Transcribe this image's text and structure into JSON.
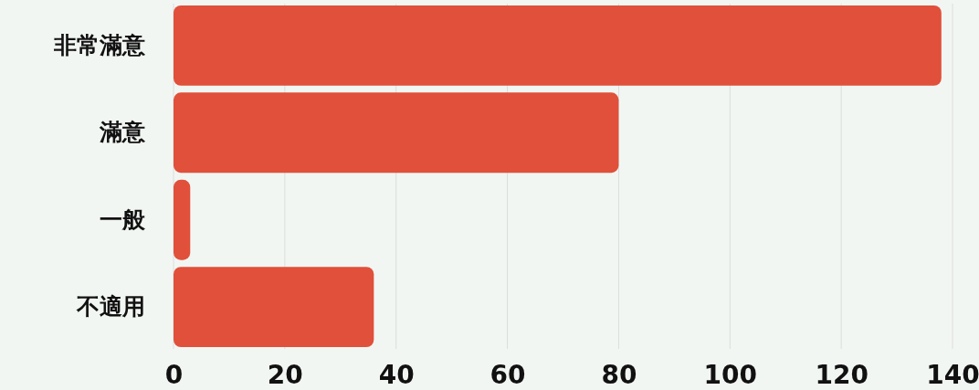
{
  "chart_data": {
    "type": "bar",
    "orientation": "horizontal",
    "categories": [
      "非常滿意",
      "滿意",
      "一般",
      "不適用"
    ],
    "values": [
      138,
      80,
      3,
      36
    ],
    "color": "#e0503a",
    "xlim": [
      0,
      140
    ],
    "xticks": [
      0,
      20,
      40,
      60,
      80,
      100,
      120,
      140
    ],
    "grid": "x"
  }
}
